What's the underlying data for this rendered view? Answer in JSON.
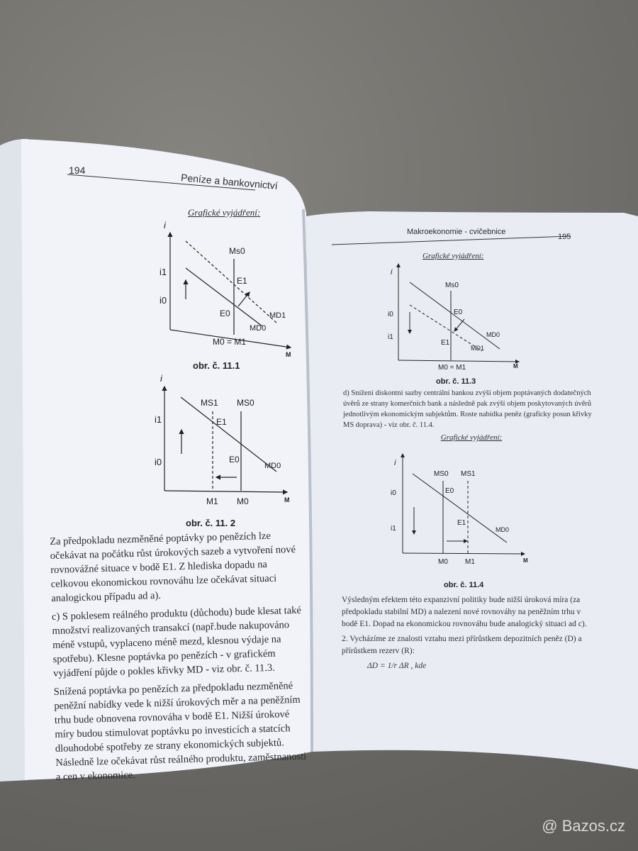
{
  "left_page": {
    "page_number": "194",
    "running_header": "Peníze a bankovnictví",
    "graph_heading": "Grafické vyjádření:",
    "fig1": {
      "caption": "obr. č. 11.1",
      "y_axis": "i",
      "x_axis": "M",
      "i1": "i1",
      "i0": "i0",
      "ms0": "Ms0",
      "e1": "E1",
      "e0": "E0",
      "md1": "MD1",
      "md0": "MD0",
      "m_label": "M0 = M1"
    },
    "fig2": {
      "caption": "obr. č. 11. 2",
      "y_axis": "i",
      "x_axis": "M",
      "i1": "i1",
      "i0": "i0",
      "ms1": "MS1",
      "ms0": "MS0",
      "e1": "E1",
      "e0": "E0",
      "md0": "MD0",
      "m1": "M1",
      "m0": "M0"
    },
    "paragraphs": [
      "Za předpokladu nezměněné poptávky po penězích lze očekávat na počátku růst úrokových sazeb a vytvoření nové rovnovážné situace v bodě E1. Z hlediska dopadu na celkovou ekonomickou rovnováhu lze očekávat situaci analogickou případu ad a).",
      "c) S poklesem reálného produktu (důchodu) bude klesat také množství realizovaných transakcí (např.bude nakupováno méně vstupů, vyplaceno méně mezd, klesnou výdaje na spotřebu). Klesne poptávka po penězích - v grafickém vyjádření půjde o pokles křivky MD - viz obr. č. 11.3.",
      "Snížená poptávka po penězích za předpokladu nezměněné peněžní nabídky vede k nižší úrokových měr a na peněžním trhu bude obnovena rovnováha v bodě E1. Nižší úrokové míry budou stimulovat poptávku po investicích a statcích dlouhodobé spotřeby ze strany ekonomických subjektů. Následně lze očekávat růst reálného produktu, zaměstnanosti a cen v ekonomice."
    ]
  },
  "right_page": {
    "page_number": "195",
    "running_header": "Makroekonomie - cvičebnice",
    "graph_heading_1": "Grafické vyjádření:",
    "fig3": {
      "caption": "obr. č. 11.3",
      "y_axis": "i",
      "x_axis": "M",
      "i0": "i0",
      "i1": "i1",
      "ms0": "Ms0",
      "e0": "E0",
      "e1": "E1",
      "md0": "MD0",
      "md1": "MD1",
      "m_label": "M0 = M1"
    },
    "paragraph_d": "d) Snížení diskontní sazby centrální bankou zvýší objem poptávaných dodatečných úvěrů ze strany komerčních bank a následně pak zvýší objem poskytovaných úvěrů jednotlivým ekonomickým subjektům. Roste nabídka peněz (graficky posun křivky MS doprava) - viz obr. č. 11.4.",
    "graph_heading_2": "Grafické vyjádření:",
    "fig4": {
      "caption": "obr. č. 11.4",
      "y_axis": "i",
      "x_axis": "M",
      "i0": "i0",
      "i1": "i1",
      "ms0": "MS0",
      "ms1": "MS1",
      "e0": "E0",
      "e1": "E1",
      "md0": "MD0",
      "m0": "M0",
      "m1": "M1"
    },
    "paragraph_result": "Výsledným efektem této expanzivní politiky bude nižší úroková míra (za předpokladu stabilní MD) a nalezení nové rovnováhy na peněžním trhu v bodě E1. Dopad na ekonomickou rovnováhu bude analogický situaci ad c).",
    "item_2": "2. Vycházíme ze znalosti vztahu mezi přírůstkem depozitních peněz (D) a přírůstkem rezerv (R):",
    "formula": "ΔD = 1/r ΔR , kde"
  },
  "watermark": "@ Bazos.cz",
  "colors": {
    "paper": "#eef1f6",
    "ink": "#2a2a30",
    "carpet": "#6f6e6b"
  }
}
